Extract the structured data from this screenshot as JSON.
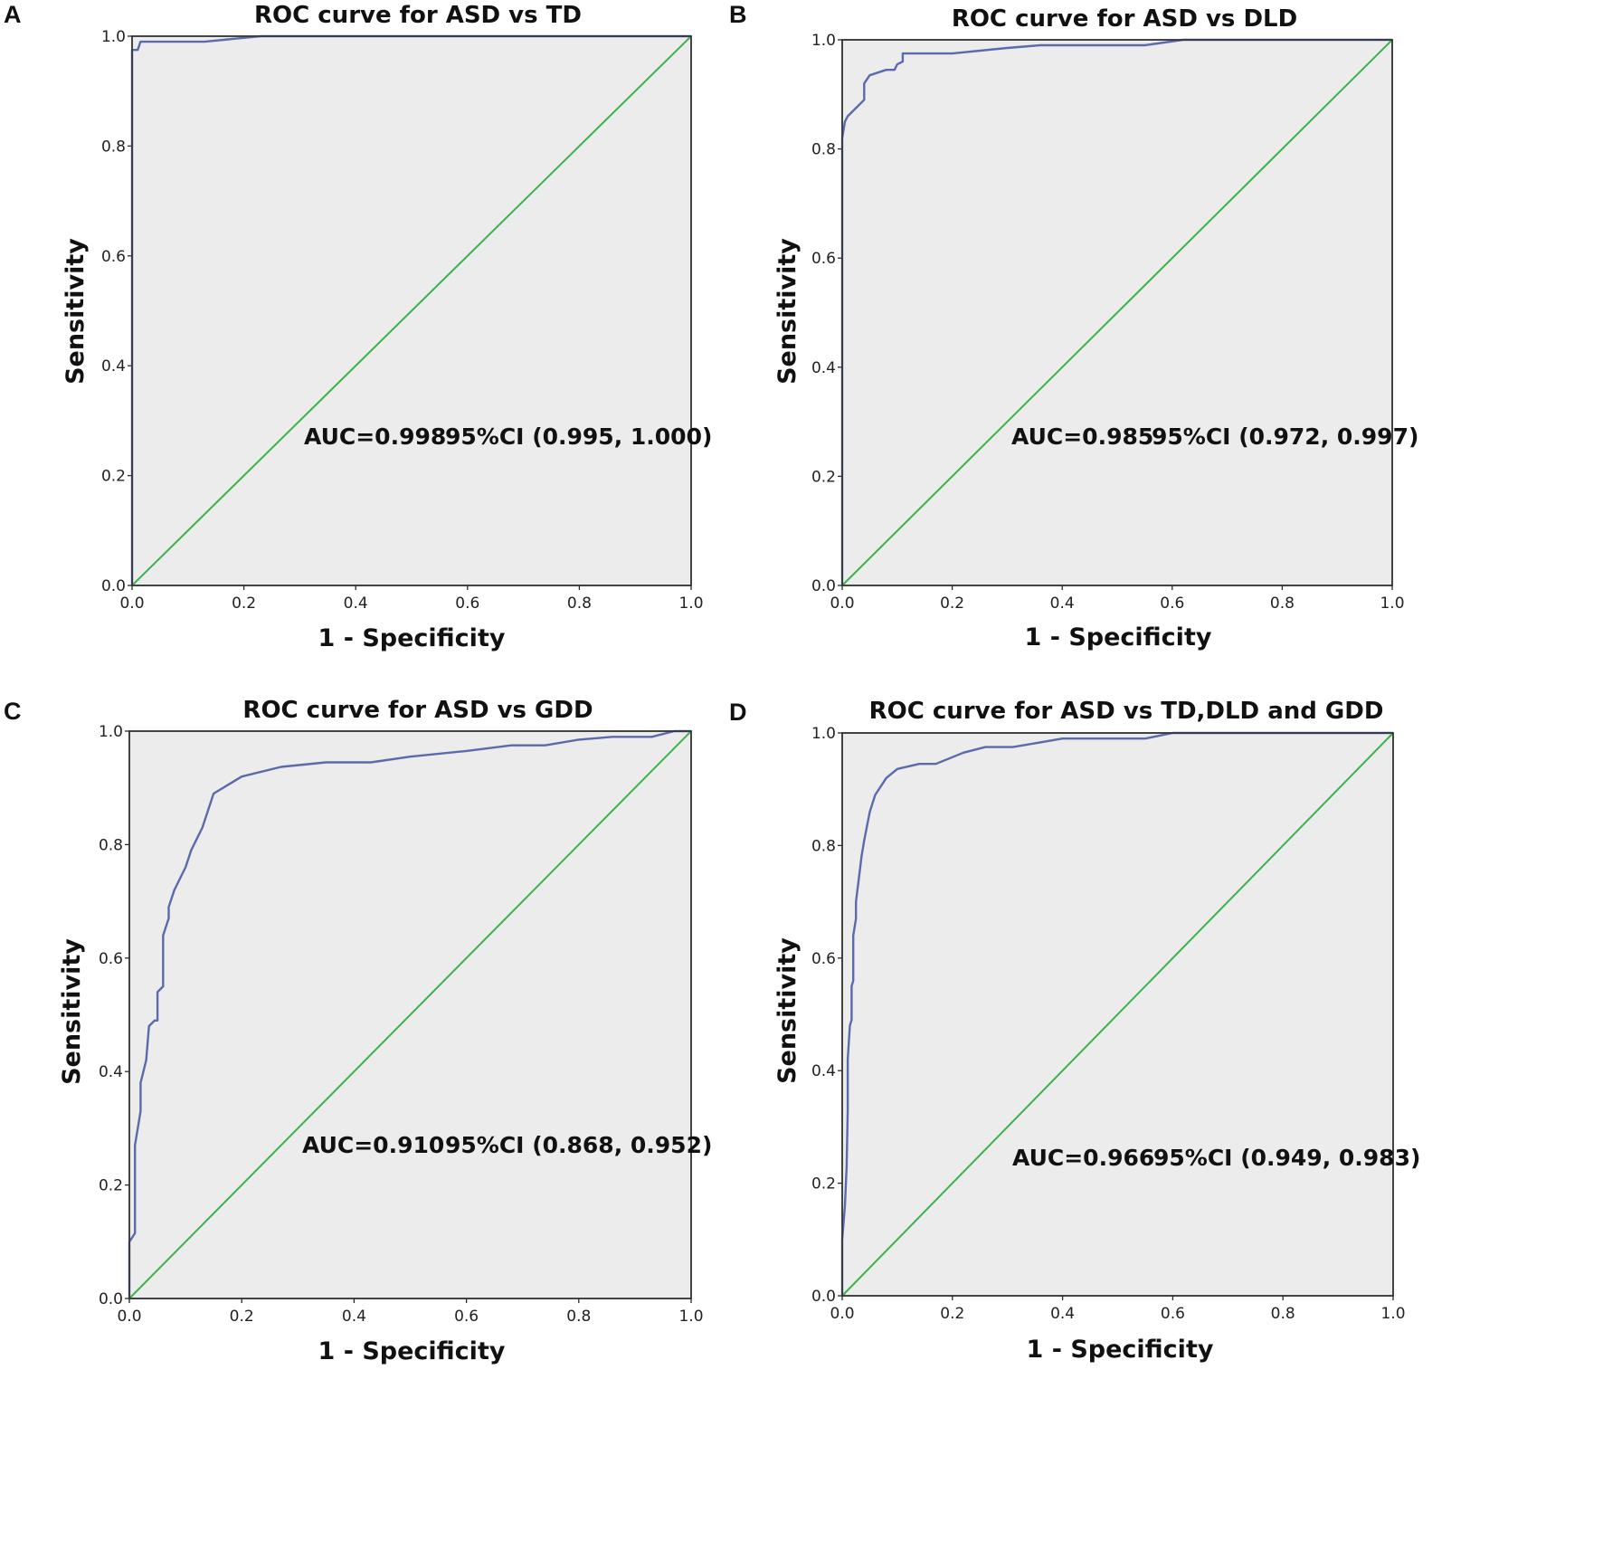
{
  "colors": {
    "roc": "#5a6aaa",
    "reference": "#3cb24a",
    "plot_bg": "#ececec"
  },
  "chart_data": [
    {
      "panel": "A",
      "type": "line",
      "title": "ROC curve for ASD vs TD",
      "xlabel": "1 - Specificity",
      "ylabel": "Sensitivity",
      "xlim": [
        0,
        1
      ],
      "ylim": [
        0,
        1
      ],
      "xticks": [
        "0.0",
        "0.2",
        "0.4",
        "0.6",
        "0.8",
        "1.0"
      ],
      "yticks": [
        "0.0",
        "0.2",
        "0.4",
        "0.6",
        "0.8",
        "1.0"
      ],
      "annotation": {
        "auc": "AUC=0.998",
        "ci": "95%CI (0.995, 1.000)"
      },
      "series": [
        {
          "name": "ROC",
          "points": [
            [
              0,
              0
            ],
            [
              0,
              0.975
            ],
            [
              0.01,
              0.975
            ],
            [
              0.015,
              0.99
            ],
            [
              0.13,
              0.99
            ],
            [
              0.2,
              0.997
            ],
            [
              0.23,
              1.0
            ],
            [
              1.0,
              1.0
            ]
          ]
        },
        {
          "name": "Reference",
          "points": [
            [
              0,
              0
            ],
            [
              1,
              1
            ]
          ]
        }
      ]
    },
    {
      "panel": "B",
      "type": "line",
      "title": "ROC curve for ASD vs DLD",
      "xlabel": "1 - Specificity",
      "ylabel": "Sensitivity",
      "xlim": [
        0,
        1
      ],
      "ylim": [
        0,
        1
      ],
      "xticks": [
        "0.0",
        "0.2",
        "0.4",
        "0.6",
        "0.8",
        "1.0"
      ],
      "yticks": [
        "0.0",
        "0.2",
        "0.4",
        "0.6",
        "0.8",
        "1.0"
      ],
      "annotation": {
        "auc": "AUC=0.985",
        "ci": "95%CI (0.972, 0.997)"
      },
      "series": [
        {
          "name": "ROC",
          "points": [
            [
              0,
              0
            ],
            [
              0,
              0.82
            ],
            [
              0.005,
              0.85
            ],
            [
              0.01,
              0.86
            ],
            [
              0.02,
              0.87
            ],
            [
              0.04,
              0.89
            ],
            [
              0.04,
              0.92
            ],
            [
              0.05,
              0.935
            ],
            [
              0.065,
              0.94
            ],
            [
              0.08,
              0.945
            ],
            [
              0.095,
              0.945
            ],
            [
              0.1,
              0.955
            ],
            [
              0.11,
              0.96
            ],
            [
              0.11,
              0.975
            ],
            [
              0.2,
              0.975
            ],
            [
              0.3,
              0.985
            ],
            [
              0.36,
              0.99
            ],
            [
              0.55,
              0.99
            ],
            [
              0.62,
              1.0
            ],
            [
              1.0,
              1.0
            ]
          ]
        },
        {
          "name": "Reference",
          "points": [
            [
              0,
              0
            ],
            [
              1,
              1
            ]
          ]
        }
      ]
    },
    {
      "panel": "C",
      "type": "line",
      "title": "ROC curve for ASD vs GDD",
      "xlabel": "1 - Specificity",
      "ylabel": "Sensitivity",
      "xlim": [
        0,
        1
      ],
      "ylim": [
        0,
        1
      ],
      "xticks": [
        "0.0",
        "0.2",
        "0.4",
        "0.6",
        "0.8",
        "1.0"
      ],
      "yticks": [
        "0.0",
        "0.2",
        "0.4",
        "0.6",
        "0.8",
        "1.0"
      ],
      "annotation": {
        "auc": "AUC=0.910",
        "ci": "95%CI (0.868, 0.952)"
      },
      "series": [
        {
          "name": "ROC",
          "points": [
            [
              0,
              0
            ],
            [
              0,
              0.1
            ],
            [
              0.01,
              0.115
            ],
            [
              0.01,
              0.27
            ],
            [
              0.02,
              0.33
            ],
            [
              0.02,
              0.38
            ],
            [
              0.03,
              0.42
            ],
            [
              0.035,
              0.48
            ],
            [
              0.045,
              0.49
            ],
            [
              0.05,
              0.49
            ],
            [
              0.05,
              0.54
            ],
            [
              0.06,
              0.55
            ],
            [
              0.06,
              0.64
            ],
            [
              0.07,
              0.67
            ],
            [
              0.07,
              0.69
            ],
            [
              0.08,
              0.72
            ],
            [
              0.09,
              0.74
            ],
            [
              0.1,
              0.76
            ],
            [
              0.11,
              0.79
            ],
            [
              0.13,
              0.83
            ],
            [
              0.15,
              0.89
            ],
            [
              0.2,
              0.92
            ],
            [
              0.27,
              0.937
            ],
            [
              0.35,
              0.945
            ],
            [
              0.43,
              0.945
            ],
            [
              0.5,
              0.955
            ],
            [
              0.6,
              0.965
            ],
            [
              0.68,
              0.975
            ],
            [
              0.74,
              0.975
            ],
            [
              0.8,
              0.985
            ],
            [
              0.86,
              0.99
            ],
            [
              0.93,
              0.99
            ],
            [
              0.97,
              1.0
            ],
            [
              1.0,
              1.0
            ]
          ]
        },
        {
          "name": "Reference",
          "points": [
            [
              0,
              0
            ],
            [
              1,
              1
            ]
          ]
        }
      ]
    },
    {
      "panel": "D",
      "type": "line",
      "title": "ROC curve for ASD vs TD,DLD and GDD",
      "xlabel": "1 - Specificity",
      "ylabel": "Sensitivity",
      "xlim": [
        0,
        1
      ],
      "ylim": [
        0,
        1
      ],
      "xticks": [
        "0.0",
        "0.2",
        "0.4",
        "0.6",
        "0.8",
        "1.0"
      ],
      "yticks": [
        "0.0",
        "0.2",
        "0.4",
        "0.6",
        "0.8",
        "1.0"
      ],
      "annotation": {
        "auc": "AUC=0.966",
        "ci": "95%CI (0.949, 0.983)"
      },
      "series": [
        {
          "name": "ROC",
          "points": [
            [
              0,
              0
            ],
            [
              0,
              0.1
            ],
            [
              0.005,
              0.16
            ],
            [
              0.008,
              0.23
            ],
            [
              0.01,
              0.33
            ],
            [
              0.01,
              0.42
            ],
            [
              0.014,
              0.48
            ],
            [
              0.017,
              0.49
            ],
            [
              0.017,
              0.55
            ],
            [
              0.02,
              0.56
            ],
            [
              0.02,
              0.64
            ],
            [
              0.025,
              0.67
            ],
            [
              0.025,
              0.7
            ],
            [
              0.03,
              0.74
            ],
            [
              0.035,
              0.78
            ],
            [
              0.04,
              0.81
            ],
            [
              0.05,
              0.86
            ],
            [
              0.06,
              0.89
            ],
            [
              0.08,
              0.92
            ],
            [
              0.1,
              0.936
            ],
            [
              0.14,
              0.945
            ],
            [
              0.17,
              0.945
            ],
            [
              0.22,
              0.965
            ],
            [
              0.26,
              0.975
            ],
            [
              0.31,
              0.975
            ],
            [
              0.4,
              0.99
            ],
            [
              0.55,
              0.99
            ],
            [
              0.6,
              1.0
            ],
            [
              1.0,
              1.0
            ]
          ]
        },
        {
          "name": "Reference",
          "points": [
            [
              0,
              0
            ],
            [
              1,
              1
            ]
          ]
        }
      ]
    }
  ]
}
